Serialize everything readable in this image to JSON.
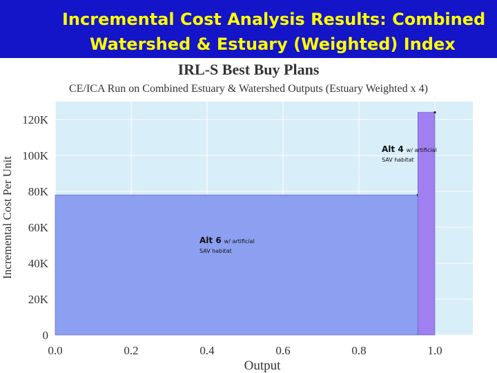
{
  "header": {
    "title_lines": [
      "Incremental Cost Analysis Results:  Combined",
      "Watershed & Estuary (Weighted) Index"
    ]
  },
  "chart_data": {
    "type": "histogram",
    "title": "IRL-S Best Buy Plans",
    "subtitle": "CE/ICA Run on Combined Estuary & Watershed Outputs (Estuary Weighted x 4)",
    "x_label": "Output",
    "y_label": "Incremental Cost Per Unit",
    "bins": [
      0,
      0.955,
      1.0
    ],
    "values": [
      78000,
      124000
    ],
    "colors": [
      "#8c9ff0",
      "#a07ff0"
    ],
    "xlim": [
      0,
      1.1
    ],
    "xticks": [
      {
        "value": 0,
        "label": "0.0"
      },
      0.2,
      0.4,
      0.6,
      0.8,
      {
        "value": 1,
        "label": "1.0"
      }
    ],
    "ylim": [
      0,
      130000
    ],
    "yticks": [
      0,
      {
        "value": 20000,
        "label": "20K"
      },
      {
        "value": 40000,
        "label": "40K"
      },
      {
        "value": 60000,
        "label": "60K"
      },
      {
        "value": 80000,
        "label": "80K"
      },
      {
        "value": 100000,
        "label": "100K"
      },
      {
        "value": 120000,
        "label": "120K"
      }
    ],
    "grid": true,
    "annotations": [
      {
        "name": "Alt 6",
        "note": "w/ artificial",
        "detail": "SAV habitat"
      },
      {
        "name": "Alt 4",
        "note": "w/ artificial",
        "detail": "SAV habitat"
      }
    ]
  }
}
